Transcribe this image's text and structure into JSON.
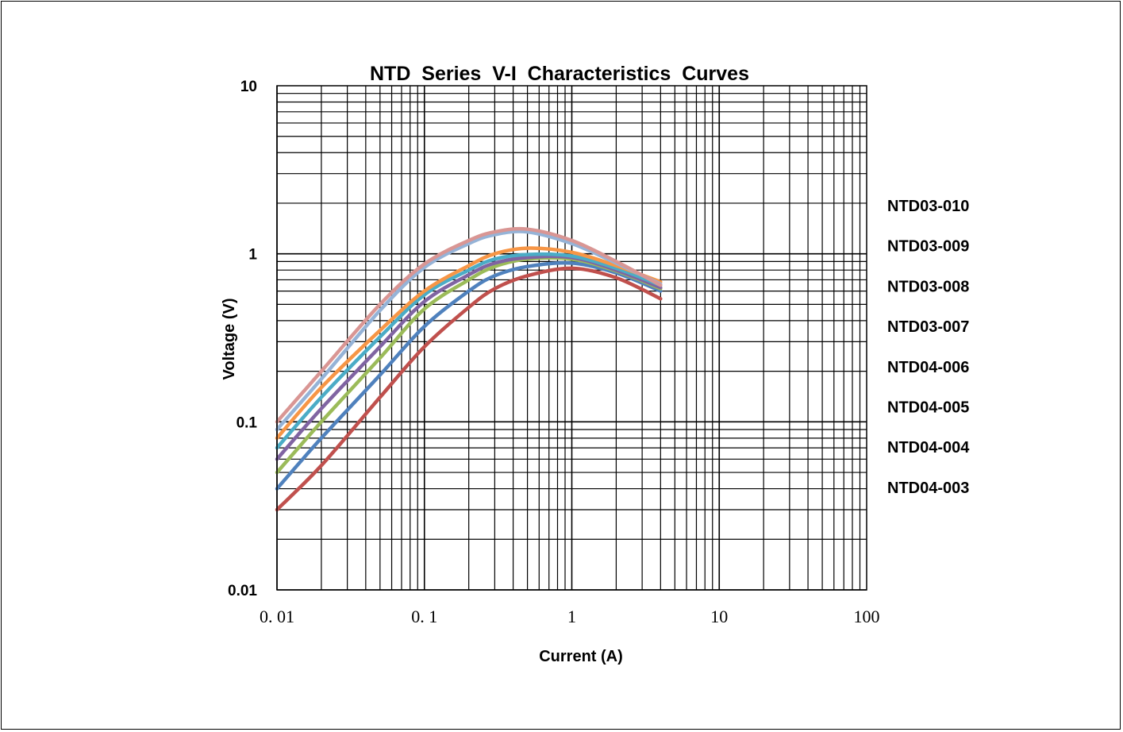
{
  "chart_data": {
    "type": "line",
    "title": "NTD  Series  V-I  Characteristics  Curves",
    "xlabel": "Current (A)",
    "ylabel": "Voltage (V)",
    "x_scale": "log",
    "y_scale": "log",
    "xlim": [
      0.01,
      100
    ],
    "ylim": [
      0.01,
      10
    ],
    "x_tick_labels": [
      "0. 01",
      "0. 1",
      "1",
      "10",
      "100"
    ],
    "y_tick_labels": [
      "10",
      "1",
      "0.1",
      "0.01"
    ],
    "grid": true,
    "legend_position": "right",
    "legend": [
      "NTD03-010",
      "NTD03-009",
      "NTD03-008",
      "NTD03-007",
      "NTD04-006",
      "NTD04-005",
      "NTD04-004",
      "NTD04-003"
    ],
    "series": [
      {
        "name": "NTD03-010",
        "color": "#d99694",
        "points": [
          [
            0.01,
            0.1
          ],
          [
            0.02,
            0.2
          ],
          [
            0.05,
            0.5
          ],
          [
            0.1,
            0.87
          ],
          [
            0.2,
            1.2
          ],
          [
            0.3,
            1.35
          ],
          [
            0.5,
            1.4
          ],
          [
            1,
            1.2
          ],
          [
            2,
            0.9
          ],
          [
            4,
            0.65
          ]
        ]
      },
      {
        "name": "NTD03-009",
        "color": "#95b3d7",
        "points": [
          [
            0.01,
            0.09
          ],
          [
            0.02,
            0.18
          ],
          [
            0.05,
            0.46
          ],
          [
            0.1,
            0.83
          ],
          [
            0.2,
            1.15
          ],
          [
            0.3,
            1.3
          ],
          [
            0.5,
            1.35
          ],
          [
            1,
            1.15
          ],
          [
            2,
            0.88
          ],
          [
            4,
            0.66
          ]
        ]
      },
      {
        "name": "NTD03-008",
        "color": "#f79646",
        "points": [
          [
            0.01,
            0.08
          ],
          [
            0.02,
            0.16
          ],
          [
            0.05,
            0.35
          ],
          [
            0.1,
            0.6
          ],
          [
            0.2,
            0.85
          ],
          [
            0.3,
            1.0
          ],
          [
            0.5,
            1.08
          ],
          [
            1,
            1.02
          ],
          [
            2,
            0.85
          ],
          [
            4,
            0.68
          ]
        ]
      },
      {
        "name": "NTD03-007",
        "color": "#4bacc6",
        "points": [
          [
            0.01,
            0.07
          ],
          [
            0.02,
            0.14
          ],
          [
            0.05,
            0.32
          ],
          [
            0.1,
            0.57
          ],
          [
            0.2,
            0.8
          ],
          [
            0.3,
            0.93
          ],
          [
            0.5,
            0.99
          ],
          [
            1,
            0.97
          ],
          [
            2,
            0.82
          ],
          [
            4,
            0.65
          ]
        ]
      },
      {
        "name": "NTD04-006",
        "color": "#8064a2",
        "points": [
          [
            0.01,
            0.06
          ],
          [
            0.02,
            0.12
          ],
          [
            0.05,
            0.28
          ],
          [
            0.1,
            0.52
          ],
          [
            0.2,
            0.75
          ],
          [
            0.3,
            0.88
          ],
          [
            0.5,
            0.95
          ],
          [
            1,
            0.95
          ],
          [
            2,
            0.8
          ],
          [
            4,
            0.63
          ]
        ]
      },
      {
        "name": "NTD04-005",
        "color": "#9bbb59",
        "points": [
          [
            0.01,
            0.05
          ],
          [
            0.02,
            0.1
          ],
          [
            0.05,
            0.24
          ],
          [
            0.1,
            0.47
          ],
          [
            0.2,
            0.7
          ],
          [
            0.3,
            0.84
          ],
          [
            0.5,
            0.93
          ],
          [
            1,
            0.93
          ],
          [
            2,
            0.79
          ],
          [
            4,
            0.62
          ]
        ]
      },
      {
        "name": "NTD04-004",
        "color": "#4f81bd",
        "points": [
          [
            0.01,
            0.04
          ],
          [
            0.02,
            0.08
          ],
          [
            0.05,
            0.19
          ],
          [
            0.1,
            0.37
          ],
          [
            0.2,
            0.6
          ],
          [
            0.3,
            0.74
          ],
          [
            0.5,
            0.84
          ],
          [
            1,
            0.88
          ],
          [
            2,
            0.77
          ],
          [
            4,
            0.6
          ]
        ]
      },
      {
        "name": "NTD04-003",
        "color": "#c0504d",
        "points": [
          [
            0.01,
            0.03
          ],
          [
            0.02,
            0.055
          ],
          [
            0.05,
            0.14
          ],
          [
            0.1,
            0.28
          ],
          [
            0.2,
            0.48
          ],
          [
            0.3,
            0.62
          ],
          [
            0.5,
            0.74
          ],
          [
            1,
            0.82
          ],
          [
            2,
            0.72
          ],
          [
            4,
            0.54
          ]
        ]
      }
    ]
  }
}
